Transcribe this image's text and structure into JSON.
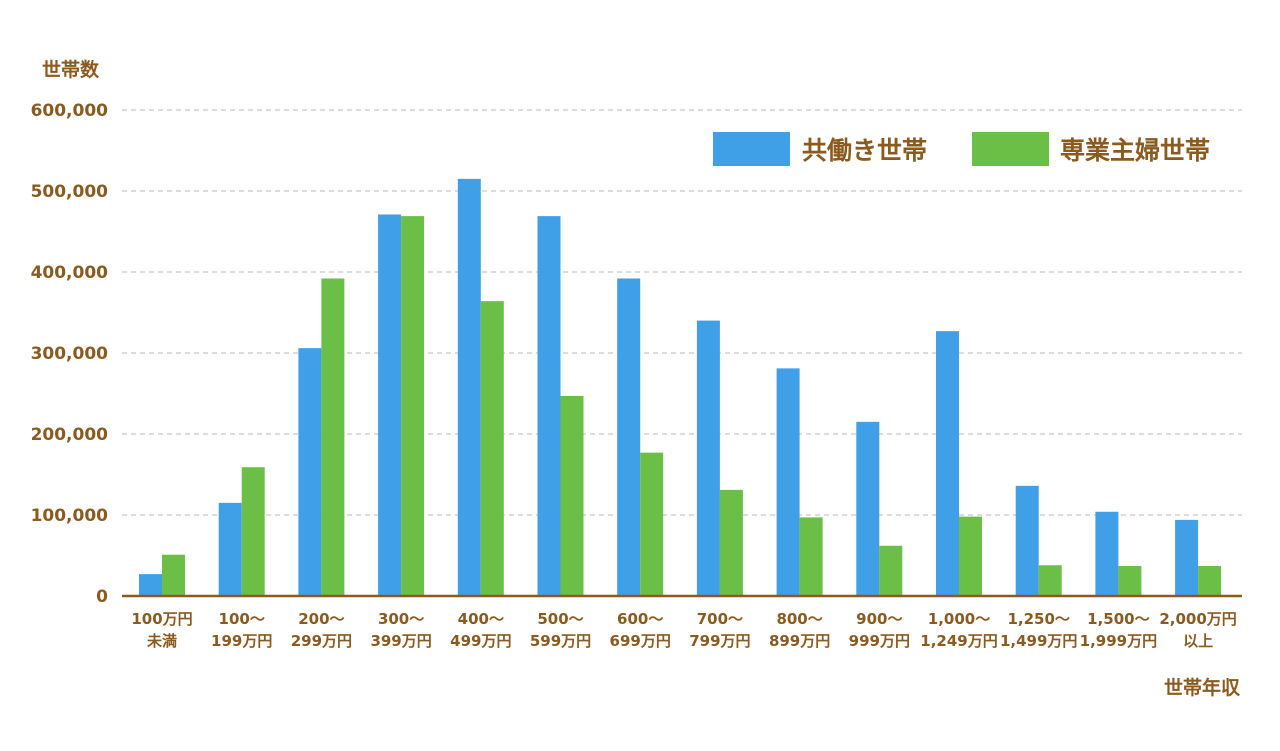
{
  "chart_data": {
    "type": "bar",
    "title": "",
    "ylabel": "世帯数",
    "xlabel": "世帯年収",
    "ylim": [
      0,
      600000
    ],
    "yticks": [
      0,
      100000,
      200000,
      300000,
      400000,
      500000,
      600000
    ],
    "ytick_labels": [
      "0",
      "100,000",
      "200,000",
      "300,000",
      "400,000",
      "500,000",
      "600,000"
    ],
    "grid": true,
    "legend_position": "top-right",
    "categories": [
      [
        "100万円",
        "未満"
      ],
      [
        "100〜",
        "199万円"
      ],
      [
        "200〜",
        "299万円"
      ],
      [
        "300〜",
        "399万円"
      ],
      [
        "400〜",
        "499万円"
      ],
      [
        "500〜",
        "599万円"
      ],
      [
        "600〜",
        "699万円"
      ],
      [
        "700〜",
        "799万円"
      ],
      [
        "800〜",
        "899万円"
      ],
      [
        "900〜",
        "999万円"
      ],
      [
        "1,000〜",
        "1,249万円"
      ],
      [
        "1,250〜",
        "1,499万円"
      ],
      [
        "1,500〜",
        "1,999万円"
      ],
      [
        "2,000万円",
        "以上"
      ]
    ],
    "series": [
      {
        "name": "共働き世帯",
        "color": "#3fa0e8",
        "values": [
          27000,
          115000,
          306000,
          471000,
          515000,
          469000,
          392000,
          340000,
          281000,
          215000,
          327000,
          136000,
          104000,
          94000
        ]
      },
      {
        "name": "専業主婦世帯",
        "color": "#6bbf47",
        "values": [
          51000,
          159000,
          392000,
          469000,
          364000,
          247000,
          177000,
          131000,
          97000,
          62000,
          98000,
          38000,
          37000,
          37000
        ]
      }
    ]
  },
  "colors": {
    "text": "#8a5a1f",
    "grid": "#c7c7c7"
  }
}
